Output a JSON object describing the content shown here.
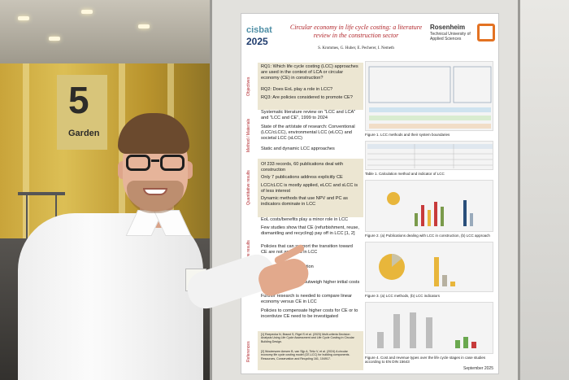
{
  "scene": {
    "hall_sign_number": "5",
    "hall_sign_label": "Garden"
  },
  "poster": {
    "logo_line1": "cisbat",
    "logo_line2": "2025",
    "title": "Circular economy in life cycle costing: a literature review in the construction sector",
    "authors": "S. Krommes, G. Huber, E. Pecherer, I. Nemeth",
    "university_name": "Rosenheim",
    "university_sub": "Technical University of Applied Sciences",
    "sections": [
      {
        "label": "Objectives",
        "lines": [
          "RQ1: Which life cycle costing (LCC) approaches are used in the context of LCA or circular economy (CE) in construction?",
          "RQ2: Does EoL play a role in LCC?",
          "RQ3: Are policies considered to promote CE?"
        ]
      },
      {
        "label": "Method / Materials",
        "lines": [
          "Systematic literature review on \"LCC and LCA\" and \"LCC and CE\", 1999 to 2024",
          "State of the art/state of research: Conventional (LCC/cLCC), environmental LCC (eLCC) and societal LCC (sLCC)",
          "Static and dynamic LCC approaches"
        ]
      },
      {
        "label": "Quantitative results",
        "lines": [
          "Of 233 records, 60 publications deal with construction",
          "Only 7 publications address explicitly CE",
          "LCC/cLCC is mostly applied, eLCC and sLCC is of less interest",
          "Dynamic methods that use NPV and PC as indicators dominate in LCC"
        ]
      },
      {
        "label": "Qualitative results",
        "lines": [
          "EoL costs/benefits play a minor role in LCC",
          "Few studies show that CE (refurbishment, reuse, dismantling and recycling) pay off in LCC [1, 2]",
          "Policies that can support the transition toward CE are not analyzed in LCC",
          "...influence in construction",
          "...ar indicator",
          "...shows that CE can outweigh higher initial costs over lifetime",
          "Further research is needed to compare linear economy versus CE in LCC",
          "Policies to compensate higher costs for CE or to incentivize CE need to be investigated"
        ]
      },
      {
        "label": "References",
        "lines": [
          "[1] Rzepecka N, Braust S, Rigel S et al. (2023) Multi-criteria Decision Analysis Using Life Cycle Assessment and Life Cycle Costing in Circular Building Design.",
          "[2] Wouterszen Amsen B, van Sijp A, Tirtiz V, et al. (2024) A circular economy life cycle costing model (CE-LCC) for building components. Resources, Conservation and Recycling 161, 104917."
        ]
      }
    ],
    "figure_captions": [
      "Figure 1. LCC methods and their system boundaries",
      "Table 1. Calculation method and indicator of LCC",
      "Figure 2. (a) Publications dealing with LCC in construction, (b) LCC approach",
      "Figure 3. (a) LCC methods, (b) LCC indicators",
      "Figure 4. Cost and revenue types over the life cycle stages in case studies according to EN DIN 15643"
    ],
    "date": "September 2025"
  }
}
